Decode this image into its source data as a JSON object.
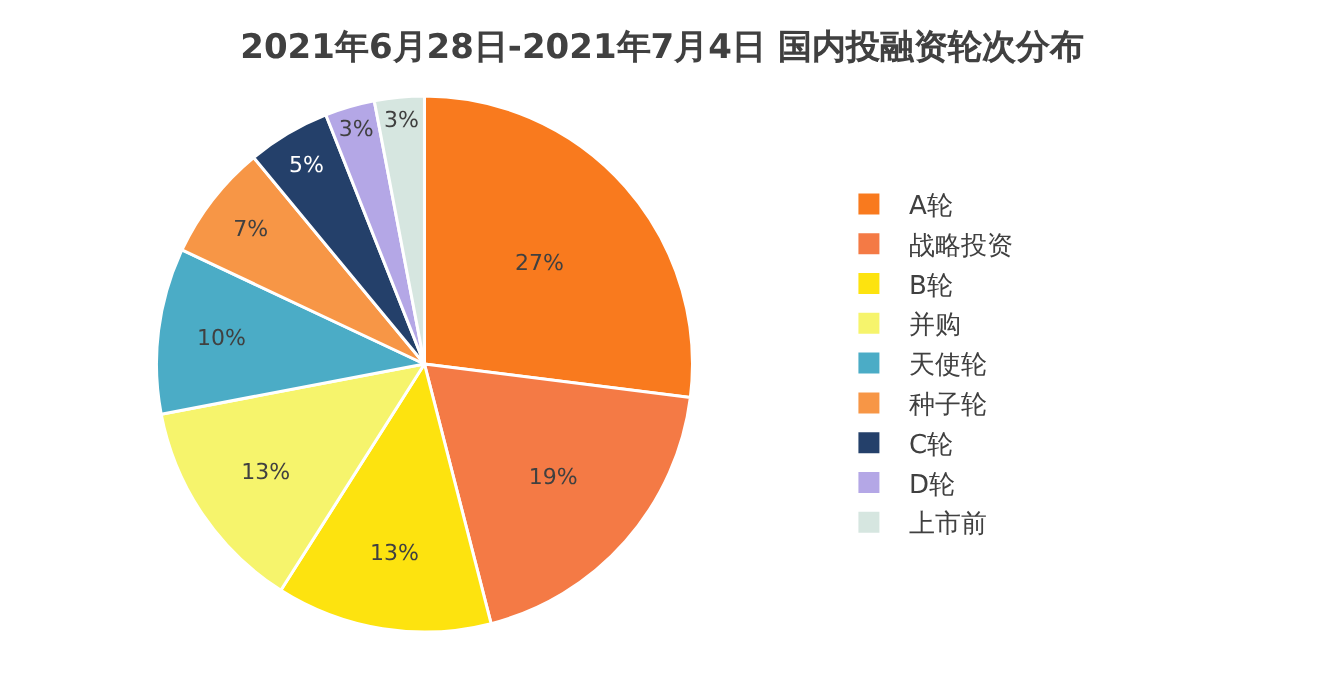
{
  "chart_data": {
    "type": "pie",
    "title": "2021年6月28日-2021年7月4日 国内投融资轮次分布",
    "categories": [
      "A轮",
      "战略投资",
      "B轮",
      "并购",
      "天使轮",
      "种子轮",
      "C轮",
      "D轮",
      "上市前"
    ],
    "values": [
      27,
      19,
      13,
      13,
      10,
      7,
      5,
      3,
      3
    ],
    "value_labels": [
      "27%",
      "19%",
      "13%",
      "13%",
      "10%",
      "7%",
      "5%",
      "3%",
      "3%"
    ],
    "colors": [
      "#f97a1e",
      "#f47a45",
      "#fde30f",
      "#f6f46c",
      "#4bacc6",
      "#f79646",
      "#24406a",
      "#b4a7e6",
      "#d6e6e0"
    ],
    "legend": "right"
  }
}
